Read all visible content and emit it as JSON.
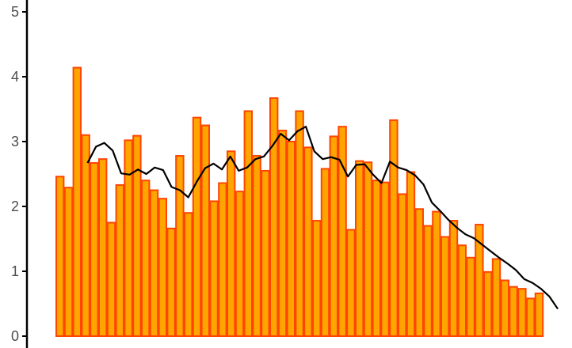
{
  "chart_data": {
    "type": "bar",
    "bar_fill": "#ffa500",
    "bar_stroke": "#ff4500",
    "line_color": "#000000",
    "axis_color": "#000000",
    "ylim": [
      0,
      5
    ],
    "yticks": [
      0,
      1,
      2,
      3,
      4,
      5
    ],
    "grid": false,
    "series": [
      {
        "type": "bar",
        "values": [
          2.46,
          2.29,
          4.14,
          3.1,
          2.67,
          2.73,
          1.75,
          2.33,
          3.02,
          3.09,
          2.4,
          2.25,
          2.12,
          1.66,
          2.78,
          1.9,
          3.37,
          3.25,
          2.08,
          2.36,
          2.85,
          2.23,
          3.47,
          2.78,
          2.55,
          3.67,
          3.17,
          3.0,
          3.47,
          2.91,
          1.78,
          2.58,
          3.08,
          3.23,
          1.64,
          2.7,
          2.68,
          2.4,
          2.37,
          3.33,
          2.19,
          2.53,
          1.96,
          1.7,
          1.92,
          1.53,
          1.78,
          1.4,
          1.21,
          1.72,
          0.99,
          1.19,
          0.86,
          0.76,
          0.73,
          0.58,
          0.66
        ]
      },
      {
        "type": "line",
        "values": [
          2.67,
          2.92,
          2.98,
          2.86,
          2.51,
          2.49,
          2.57,
          2.5,
          2.6,
          2.56,
          2.3,
          2.25,
          2.14,
          2.38,
          2.59,
          2.66,
          2.57,
          2.77,
          2.55,
          2.6,
          2.73,
          2.77,
          2.93,
          3.12,
          3.02,
          3.16,
          3.23,
          2.85,
          2.73,
          2.76,
          2.72,
          2.46,
          2.64,
          2.65,
          2.49,
          2.36,
          2.69,
          2.6,
          2.56,
          2.48,
          2.34,
          2.06,
          1.93,
          1.79,
          1.67,
          1.57,
          1.51,
          1.41,
          1.31,
          1.21,
          1.12,
          1.02,
          0.88,
          0.82,
          0.73,
          0.61,
          0.42
        ]
      }
    ]
  }
}
